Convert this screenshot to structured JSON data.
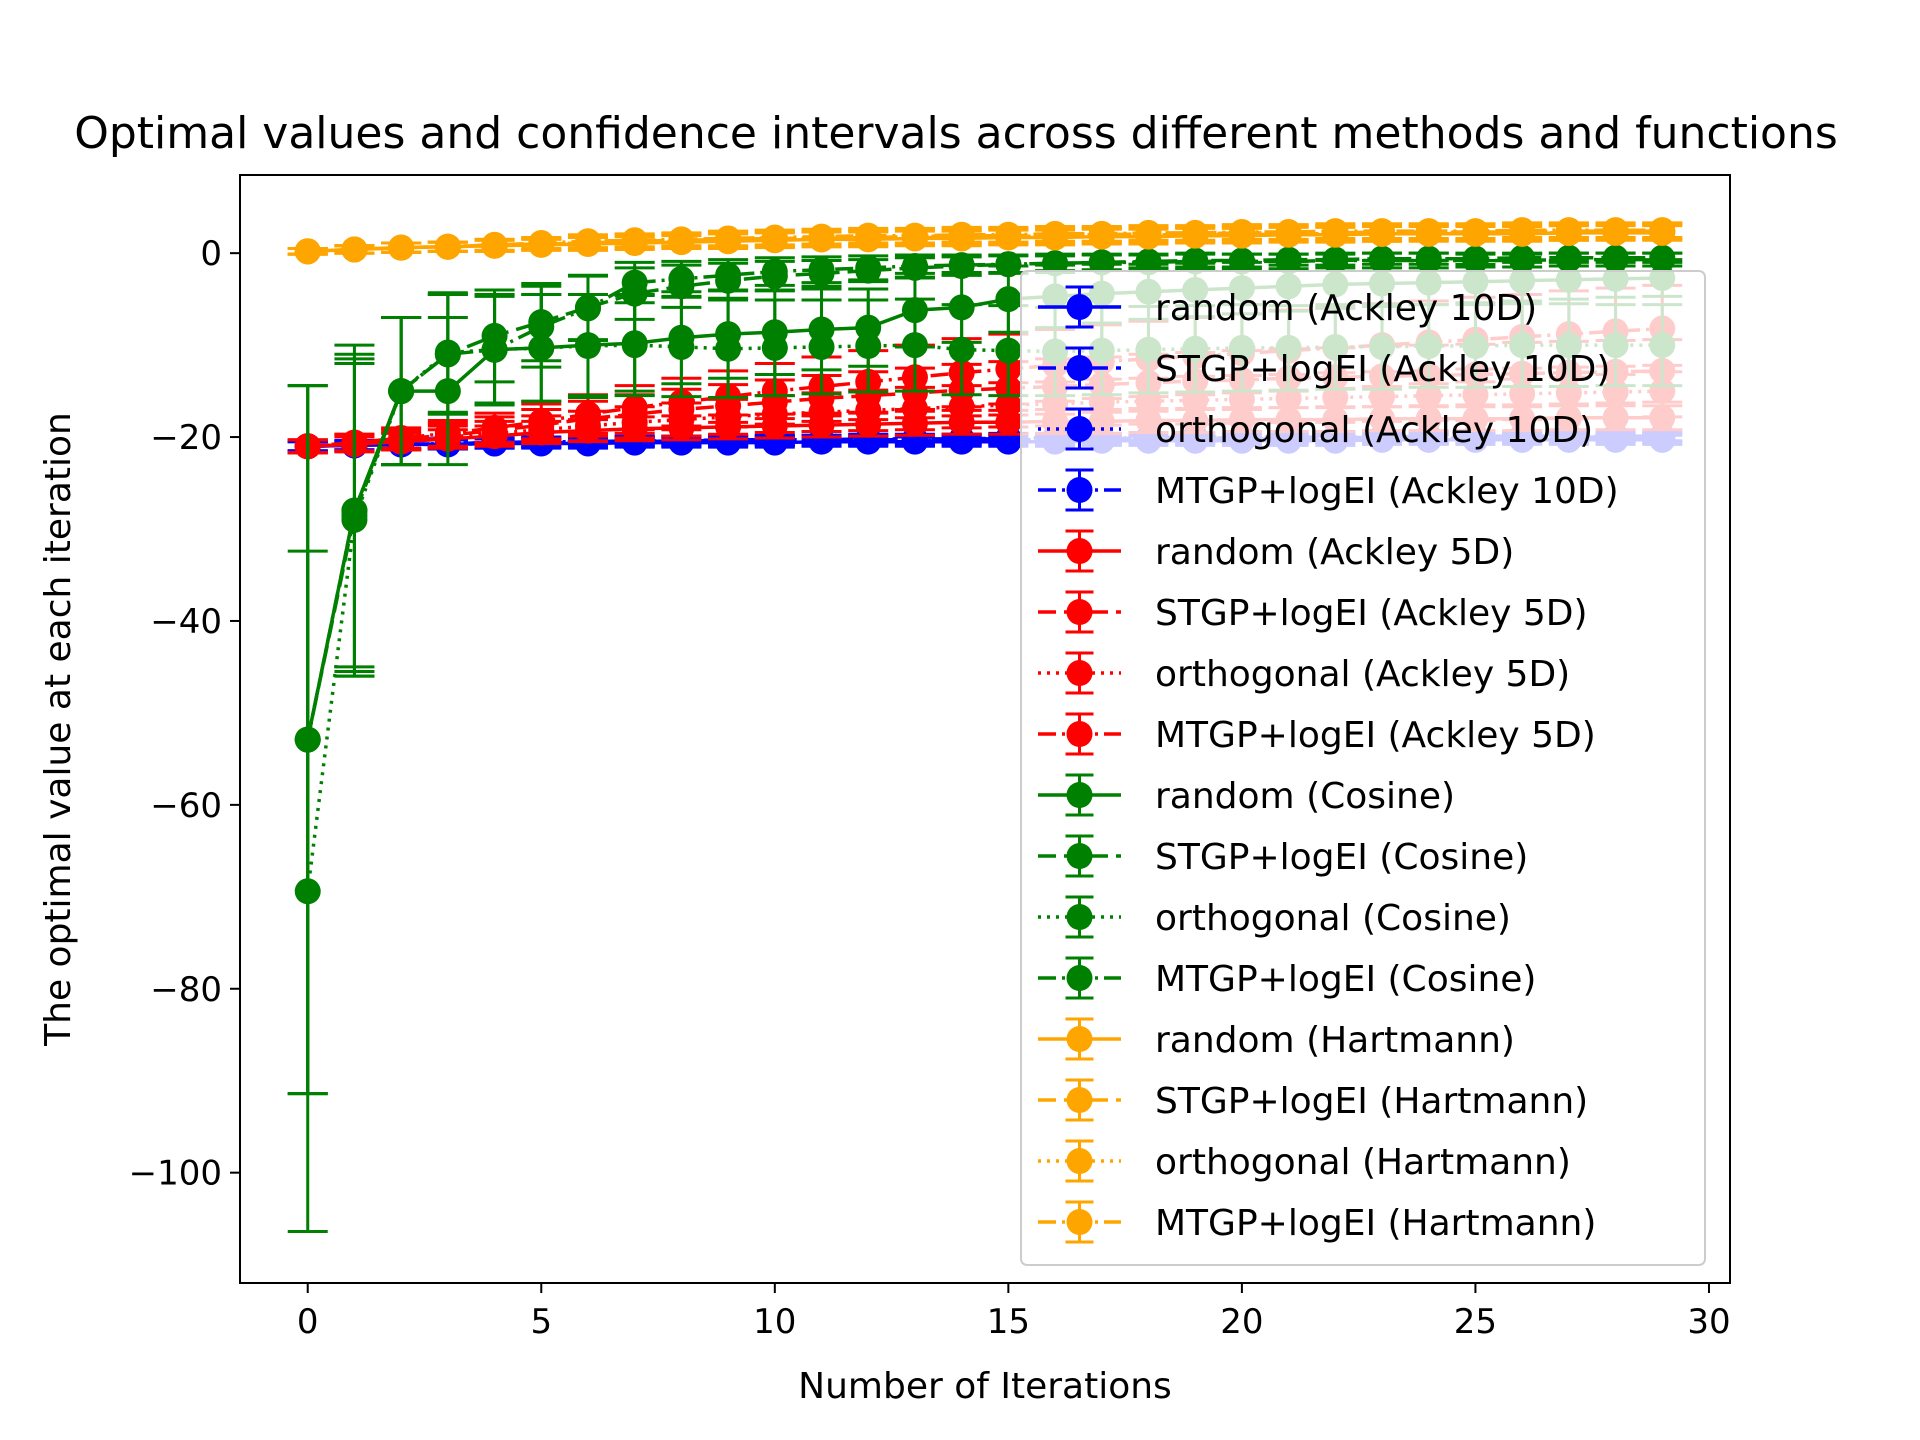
{
  "chart_data": {
    "type": "line",
    "title": "Optimal values and confidence intervals across different methods and functions",
    "xlabel": "Number of Iterations",
    "ylabel": "The optimal value at each iteration",
    "xlim": [
      -1.45,
      30.45
    ],
    "ylim": [
      -112,
      8.5
    ],
    "xticks": [
      0,
      5,
      10,
      15,
      20,
      25,
      30
    ],
    "yticks": [
      0,
      -20,
      -40,
      -60,
      -80,
      -100
    ],
    "xtick_labels": [
      "0",
      "5",
      "10",
      "15",
      "20",
      "25",
      "30"
    ],
    "ytick_labels": [
      "0",
      "−20",
      "−40",
      "−60",
      "−80",
      "−100"
    ],
    "legend_position": "right",
    "grid": false,
    "x": [
      0,
      1,
      2,
      3,
      4,
      5,
      6,
      7,
      8,
      9,
      10,
      11,
      12,
      13,
      14,
      15,
      16,
      17,
      18,
      19,
      20,
      21,
      22,
      23,
      24,
      25,
      26,
      27,
      28,
      29
    ],
    "series": [
      {
        "name": "random (Ackley 10D)",
        "color": "#0000ff",
        "linestyle": "solid",
        "values": [
          -21,
          -20.9,
          -20.8,
          -20.8,
          -20.7,
          -20.7,
          -20.7,
          -20.6,
          -20.6,
          -20.6,
          -20.6,
          -20.5,
          -20.5,
          -20.5,
          -20.5,
          -20.5,
          -20.5,
          -20.4,
          -20.4,
          -20.4,
          -20.4,
          -20.4,
          -20.4,
          -20.3,
          -20.3,
          -20.3,
          -20.3,
          -20.3,
          -20.3,
          -20.3
        ],
        "err": [
          0.5,
          0.5,
          0.5,
          0.5,
          0.5,
          0.5,
          0.5,
          0.5,
          0.5,
          0.5,
          0.5,
          0.5,
          0.5,
          0.5,
          0.5,
          0.5,
          0.5,
          0.5,
          0.5,
          0.5,
          0.5,
          0.5,
          0.5,
          0.5,
          0.5,
          0.5,
          0.5,
          0.5,
          0.5,
          0.5
        ]
      },
      {
        "name": "STGP+logEI (Ackley 10D)",
        "color": "#0000ff",
        "linestyle": "dashed",
        "values": [
          -21,
          -20.9,
          -20.8,
          -20.7,
          -20.6,
          -20.6,
          -20.5,
          -20.5,
          -20.4,
          -20.4,
          -20.4,
          -20.3,
          -20.3,
          -20.3,
          -20.2,
          -20.2,
          -20.2,
          -20.2,
          -20.1,
          -20.1,
          -20.1,
          -20.1,
          -20.1,
          -20.0,
          -20.0,
          -20.0,
          -20.0,
          -20.0,
          -20.0,
          -20.0
        ],
        "err": [
          0.5,
          0.5,
          0.5,
          0.5,
          0.5,
          0.5,
          0.5,
          0.5,
          0.5,
          0.5,
          0.5,
          0.5,
          0.5,
          0.5,
          0.5,
          0.5,
          0.5,
          0.5,
          0.5,
          0.5,
          0.5,
          0.5,
          0.5,
          0.5,
          0.5,
          0.5,
          0.5,
          0.5,
          0.5,
          0.5
        ]
      },
      {
        "name": "orthogonal (Ackley 10D)",
        "color": "#0000ff",
        "linestyle": "dotted",
        "values": [
          -21,
          -20.9,
          -20.8,
          -20.8,
          -20.7,
          -20.6,
          -20.6,
          -20.5,
          -20.5,
          -20.5,
          -20.4,
          -20.4,
          -20.4,
          -20.4,
          -20.3,
          -20.3,
          -20.3,
          -20.3,
          -20.3,
          -20.2,
          -20.2,
          -20.2,
          -20.2,
          -20.2,
          -20.2,
          -20.1,
          -20.1,
          -20.1,
          -20.1,
          -20.1
        ],
        "err": [
          0.5,
          0.5,
          0.5,
          0.5,
          0.5,
          0.5,
          0.5,
          0.5,
          0.5,
          0.5,
          0.5,
          0.5,
          0.5,
          0.5,
          0.5,
          0.5,
          0.5,
          0.5,
          0.5,
          0.5,
          0.5,
          0.5,
          0.5,
          0.5,
          0.5,
          0.5,
          0.5,
          0.5,
          0.5,
          0.5
        ]
      },
      {
        "name": "MTGP+logEI (Ackley 10D)",
        "color": "#0000ff",
        "linestyle": "dashdot",
        "values": [
          -21,
          -20.9,
          -20.8,
          -20.7,
          -20.6,
          -20.5,
          -20.5,
          -20.4,
          -20.4,
          -20.3,
          -20.3,
          -20.3,
          -20.2,
          -20.2,
          -20.2,
          -20.1,
          -20.1,
          -20.1,
          -20.1,
          -20.0,
          -20.0,
          -20.0,
          -20.0,
          -20.0,
          -19.9,
          -19.9,
          -19.9,
          -19.9,
          -19.9,
          -19.9
        ],
        "err": [
          0.5,
          0.5,
          0.5,
          0.5,
          0.5,
          0.5,
          0.5,
          0.5,
          0.5,
          0.5,
          0.5,
          0.5,
          0.5,
          0.5,
          0.5,
          0.5,
          0.5,
          0.5,
          0.5,
          0.5,
          0.5,
          0.5,
          0.5,
          0.5,
          0.5,
          0.5,
          0.5,
          0.5,
          0.5,
          0.5
        ]
      },
      {
        "name": "random (Ackley 5D)",
        "color": "#ff0000",
        "linestyle": "solid",
        "values": [
          -21,
          -20.8,
          -20.5,
          -20.2,
          -19.9,
          -19.5,
          -19.3,
          -19.1,
          -19.0,
          -18.9,
          -18.8,
          -18.7,
          -18.6,
          -18.5,
          -18.4,
          -18.4,
          -18.3,
          -18.3,
          -18.2,
          -18.2,
          -18.1,
          -18.1,
          -18.1,
          -18.0,
          -18.0,
          -18.0,
          -18.0,
          -17.9,
          -17.9,
          -17.9
        ],
        "err": [
          0.7,
          0.8,
          0.9,
          1.0,
          1.1,
          1.2,
          1.2,
          1.3,
          1.3,
          1.3,
          1.3,
          1.3,
          1.3,
          1.3,
          1.3,
          1.3,
          1.3,
          1.3,
          1.3,
          1.3,
          1.3,
          1.3,
          1.3,
          1.3,
          1.3,
          1.3,
          1.3,
          1.3,
          1.3,
          1.3
        ]
      },
      {
        "name": "STGP+logEI (Ackley 5D)",
        "color": "#ff0000",
        "linestyle": "dashed",
        "values": [
          -21,
          -20.6,
          -20.2,
          -19.8,
          -19.3,
          -18.7,
          -18.0,
          -17.5,
          -17.0,
          -16.6,
          -16.2,
          -15.8,
          -15.5,
          -15.2,
          -14.9,
          -14.7,
          -14.5,
          -14.3,
          -14.1,
          -13.9,
          -13.8,
          -13.6,
          -13.5,
          -13.4,
          -13.3,
          -13.2,
          -13.1,
          -13.0,
          -12.9,
          -12.8
        ],
        "err": [
          0.7,
          0.9,
          1.1,
          1.3,
          1.5,
          1.7,
          1.9,
          2.1,
          2.2,
          2.3,
          2.4,
          2.5,
          2.6,
          2.7,
          2.8,
          2.9,
          3.0,
          3.0,
          3.1,
          3.1,
          3.2,
          3.2,
          3.2,
          3.3,
          3.3,
          3.3,
          3.4,
          3.4,
          3.4,
          3.4
        ]
      },
      {
        "name": "orthogonal (Ackley 5D)",
        "color": "#ff0000",
        "linestyle": "dotted",
        "values": [
          -21,
          -20.7,
          -20.4,
          -20.0,
          -19.6,
          -19.2,
          -18.8,
          -18.4,
          -18.1,
          -17.8,
          -17.5,
          -17.3,
          -17.1,
          -16.9,
          -16.7,
          -16.5,
          -16.4,
          -16.2,
          -16.1,
          -16.0,
          -15.9,
          -15.8,
          -15.7,
          -15.6,
          -15.5,
          -15.4,
          -15.3,
          -15.2,
          -15.1,
          -15.0
        ],
        "err": [
          0.7,
          0.9,
          1.0,
          1.2,
          1.3,
          1.5,
          1.6,
          1.7,
          1.8,
          1.9,
          2.0,
          2.1,
          2.2,
          2.3,
          2.3,
          2.4,
          2.4,
          2.5,
          2.5,
          2.6,
          2.6,
          2.6,
          2.7,
          2.7,
          2.7,
          2.8,
          2.8,
          2.8,
          2.8,
          2.8
        ]
      },
      {
        "name": "MTGP+logEI (Ackley 5D)",
        "color": "#ff0000",
        "linestyle": "dashdot",
        "values": [
          -21,
          -20.6,
          -20.1,
          -19.6,
          -19.0,
          -18.3,
          -17.5,
          -16.8,
          -16.2,
          -15.6,
          -15.0,
          -14.5,
          -14.0,
          -13.5,
          -13.0,
          -12.6,
          -12.2,
          -11.8,
          -11.5,
          -11.2,
          -10.9,
          -10.6,
          -10.3,
          -10.0,
          -9.7,
          -9.4,
          -9.1,
          -8.8,
          -8.5,
          -8.2
        ],
        "err": [
          0.7,
          0.9,
          1.1,
          1.4,
          1.6,
          1.9,
          2.1,
          2.4,
          2.6,
          2.8,
          3.0,
          3.2,
          3.4,
          3.5,
          3.7,
          3.8,
          3.9,
          4.0,
          4.1,
          4.2,
          4.3,
          4.4,
          4.4,
          4.5,
          4.5,
          4.6,
          4.6,
          4.7,
          4.7,
          4.7
        ]
      },
      {
        "name": "random (Cosine)",
        "color": "#008000",
        "linestyle": "solid",
        "values": [
          -52.9,
          -28.0,
          -15.0,
          -15.0,
          -10.5,
          -10.3,
          -10.0,
          -9.8,
          -9.2,
          -8.8,
          -8.6,
          -8.3,
          -8.1,
          -6.2,
          -5.9,
          -5.0,
          -4.7,
          -4.4,
          -4.2,
          -4.0,
          -3.8,
          -3.6,
          -3.4,
          -3.3,
          -3.2,
          -3.1,
          -3.0,
          -2.9,
          -2.8,
          -2.7
        ],
        "err": [
          38.5,
          18.0,
          8.0,
          8.0,
          6.0,
          5.8,
          5.5,
          5.2,
          5.0,
          4.8,
          4.6,
          4.4,
          4.2,
          4.0,
          3.8,
          3.6,
          3.4,
          3.2,
          3.0,
          2.9,
          2.8,
          2.7,
          2.6,
          2.5,
          2.4,
          2.3,
          2.2,
          2.1,
          2.0,
          2.0
        ]
      },
      {
        "name": "STGP+logEI (Cosine)",
        "color": "#008000",
        "linestyle": "dashed",
        "values": [
          -52.9,
          -28.5,
          -15.0,
          -11.0,
          -9.0,
          -7.5,
          -5.9,
          -4.4,
          -3.6,
          -3.0,
          -2.5,
          -2.2,
          -1.9,
          -1.6,
          -1.4,
          -1.2,
          -1.1,
          -1.0,
          -0.9,
          -0.8,
          -0.8,
          -0.7,
          -0.7,
          -0.6,
          -0.6,
          -0.6,
          -0.5,
          -0.5,
          -0.5,
          -0.5
        ],
        "err": [
          38.5,
          17.0,
          8.0,
          6.5,
          5.0,
          4.2,
          3.5,
          2.8,
          2.3,
          1.9,
          1.6,
          1.4,
          1.2,
          1.1,
          1.0,
          0.9,
          0.8,
          0.8,
          0.7,
          0.7,
          0.7,
          0.6,
          0.6,
          0.6,
          0.6,
          0.6,
          0.5,
          0.5,
          0.5,
          0.5
        ]
      },
      {
        "name": "orthogonal (Cosine)",
        "color": "#008000",
        "linestyle": "dotted",
        "values": [
          -69.4,
          -29.0,
          -15.0,
          -10.8,
          -10.5,
          -10.3,
          -10.1,
          -10.0,
          -10.2,
          -10.4,
          -10.3,
          -10.2,
          -10.1,
          -10.0,
          -10.5,
          -10.6,
          -10.7,
          -10.6,
          -10.5,
          -10.4,
          -10.3,
          -10.3,
          -10.2,
          -10.2,
          -10.1,
          -10.1,
          -10.0,
          -10.0,
          -10.0,
          -10.0
        ],
        "err": [
          37.0,
          17.0,
          8.0,
          6.5,
          6.0,
          5.8,
          5.6,
          5.5,
          5.4,
          5.3,
          5.2,
          5.1,
          5.0,
          5.0,
          4.9,
          4.9,
          4.8,
          4.8,
          4.7,
          4.7,
          4.7,
          4.6,
          4.6,
          4.6,
          4.5,
          4.5,
          4.5,
          4.5,
          4.4,
          4.4
        ]
      },
      {
        "name": "MTGP+logEI (Cosine)",
        "color": "#008000",
        "linestyle": "dashdot",
        "values": [
          -52.9,
          -28.0,
          -15.0,
          -11.0,
          -10.5,
          -8.0,
          -6.0,
          -3.2,
          -2.8,
          -2.4,
          -2.0,
          -1.8,
          -1.6,
          -1.4,
          -1.3,
          -1.2,
          -1.1,
          -1.0,
          -1.0,
          -0.9,
          -0.9,
          -0.9,
          -0.8,
          -0.8,
          -0.8,
          -0.8,
          -0.8,
          -0.7,
          -0.7,
          -0.7
        ],
        "err": [
          38.5,
          17.0,
          8.0,
          6.5,
          5.8,
          4.4,
          3.5,
          2.2,
          1.9,
          1.7,
          1.5,
          1.4,
          1.3,
          1.2,
          1.1,
          1.0,
          1.0,
          0.9,
          0.9,
          0.9,
          0.8,
          0.8,
          0.8,
          0.8,
          0.8,
          0.7,
          0.7,
          0.7,
          0.7,
          0.7
        ]
      },
      {
        "name": "random (Hartmann)",
        "color": "#ffa500",
        "linestyle": "solid",
        "values": [
          0.2,
          0.4,
          0.6,
          0.7,
          0.8,
          0.9,
          1.0,
          1.1,
          1.2,
          1.3,
          1.4,
          1.5,
          1.5,
          1.6,
          1.6,
          1.7,
          1.7,
          1.8,
          1.8,
          1.9,
          1.9,
          2.0,
          2.0,
          2.1,
          2.1,
          2.1,
          2.1,
          2.2,
          2.2,
          2.2
        ],
        "err": [
          0.3,
          0.4,
          0.5,
          0.5,
          0.6,
          0.6,
          0.7,
          0.7,
          0.7,
          0.8,
          0.8,
          0.8,
          0.8,
          0.8,
          0.8,
          0.8,
          0.8,
          0.8,
          0.8,
          0.8,
          0.8,
          0.8,
          0.8,
          0.8,
          0.8,
          0.8,
          0.8,
          0.8,
          0.8,
          0.8
        ]
      },
      {
        "name": "STGP+logEI (Hartmann)",
        "color": "#ffa500",
        "linestyle": "dashed",
        "values": [
          0.2,
          0.4,
          0.6,
          0.7,
          0.9,
          1.0,
          1.1,
          1.3,
          1.4,
          1.5,
          1.6,
          1.6,
          1.7,
          1.8,
          1.9,
          1.9,
          2.0,
          2.0,
          2.1,
          2.1,
          2.2,
          2.2,
          2.2,
          2.3,
          2.3,
          2.3,
          2.3,
          2.4,
          2.4,
          2.4
        ],
        "err": [
          0.3,
          0.4,
          0.5,
          0.5,
          0.6,
          0.6,
          0.7,
          0.7,
          0.7,
          0.8,
          0.8,
          0.8,
          0.8,
          0.8,
          0.8,
          0.8,
          0.8,
          0.8,
          0.8,
          0.8,
          0.8,
          0.8,
          0.8,
          0.8,
          0.8,
          0.8,
          0.8,
          0.8,
          0.8,
          0.8
        ]
      },
      {
        "name": "orthogonal (Hartmann)",
        "color": "#ffa500",
        "linestyle": "dotted",
        "values": [
          0.2,
          0.4,
          0.6,
          0.7,
          0.8,
          1.0,
          1.1,
          1.2,
          1.3,
          1.4,
          1.5,
          1.5,
          1.6,
          1.7,
          1.7,
          1.8,
          1.9,
          1.9,
          2.0,
          2.0,
          2.0,
          2.1,
          2.1,
          2.1,
          2.2,
          2.2,
          2.2,
          2.2,
          2.3,
          2.3
        ],
        "err": [
          0.3,
          0.4,
          0.5,
          0.5,
          0.6,
          0.6,
          0.7,
          0.7,
          0.7,
          0.8,
          0.8,
          0.8,
          0.8,
          0.8,
          0.8,
          0.8,
          0.8,
          0.8,
          0.8,
          0.8,
          0.8,
          0.8,
          0.8,
          0.8,
          0.8,
          0.8,
          0.8,
          0.8,
          0.8,
          0.8
        ]
      },
      {
        "name": "MTGP+logEI (Hartmann)",
        "color": "#ffa500",
        "linestyle": "dashdot",
        "values": [
          0.2,
          0.4,
          0.6,
          0.7,
          0.9,
          1.1,
          1.3,
          1.4,
          1.5,
          1.6,
          1.7,
          1.8,
          1.9,
          1.9,
          2.0,
          2.0,
          2.1,
          2.1,
          2.2,
          2.2,
          2.3,
          2.3,
          2.4,
          2.4,
          2.4,
          2.4,
          2.5,
          2.5,
          2.5,
          2.5
        ],
        "err": [
          0.3,
          0.4,
          0.5,
          0.5,
          0.6,
          0.6,
          0.7,
          0.7,
          0.7,
          0.8,
          0.8,
          0.8,
          0.8,
          0.8,
          0.8,
          0.8,
          0.8,
          0.8,
          0.8,
          0.8,
          0.8,
          0.8,
          0.8,
          0.8,
          0.8,
          0.8,
          0.8,
          0.8,
          0.8,
          0.8
        ]
      }
    ]
  }
}
